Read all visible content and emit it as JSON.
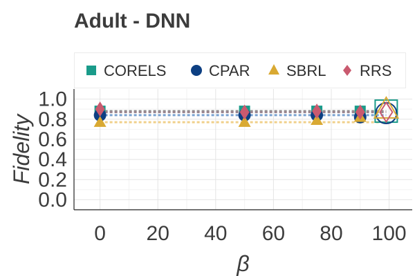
{
  "chart_data": {
    "type": "scatter",
    "title": "Adult - DNN",
    "xlabel": "β",
    "ylabel": "Fidelity",
    "xlim": [
      -9,
      108
    ],
    "ylim": [
      -0.1,
      1.1
    ],
    "x_ticks": [
      "0",
      "20",
      "40",
      "60",
      "80",
      "100"
    ],
    "y_ticks": [
      "0.0",
      "0.2",
      "0.4",
      "0.6",
      "0.8",
      "1.0"
    ],
    "grid": true,
    "legend_position": "top",
    "x": [
      0,
      50,
      75,
      90,
      99
    ],
    "series": [
      {
        "name": "CORELS",
        "marker": "square",
        "color": "#1a9b8a",
        "values": [
          0.88,
          0.88,
          0.88,
          0.88,
          0.88
        ],
        "ref_line": 0.88
      },
      {
        "name": "CPAR",
        "marker": "circle",
        "color": "#0d3f82",
        "values": [
          0.84,
          0.84,
          0.84,
          0.82,
          0.86
        ],
        "ref_line": 0.84
      },
      {
        "name": "SBRL",
        "marker": "triangle",
        "color": "#d9a932",
        "values": [
          0.77,
          0.77,
          0.79,
          0.82,
          0.9
        ],
        "ref_line": 0.77
      },
      {
        "name": "RRS",
        "marker": "diamond",
        "color": "#c95a6f",
        "values": [
          0.9,
          0.87,
          0.88,
          0.87,
          0.87
        ],
        "ref_line": 0.87
      }
    ]
  }
}
